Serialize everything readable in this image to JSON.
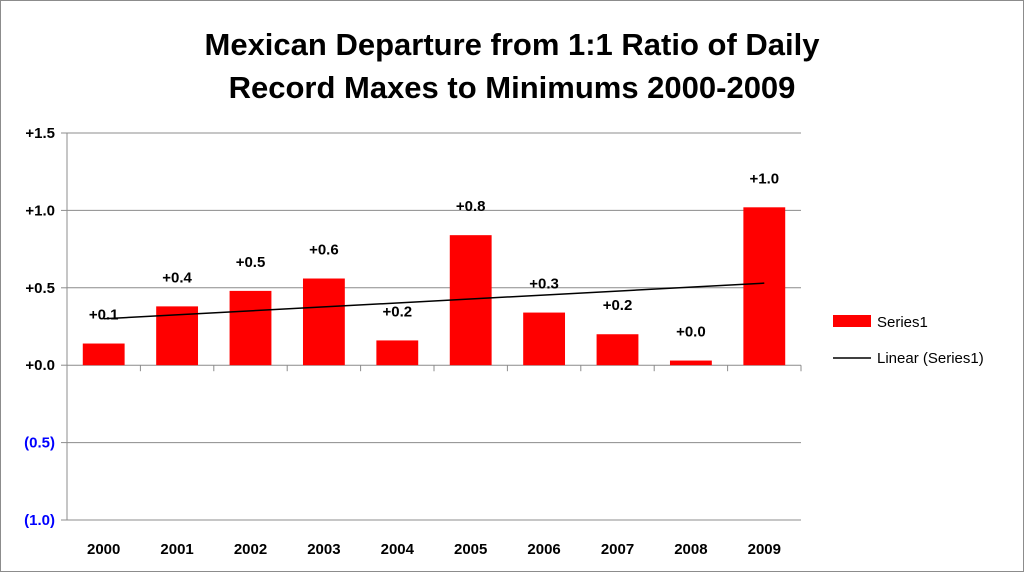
{
  "chart_data": {
    "type": "bar",
    "title_lines": [
      "Mexican Departure from 1:1 Ratio of Daily",
      "Record Maxes to  Minimums 2000-2009"
    ],
    "categories": [
      "2000",
      "2001",
      "2002",
      "2003",
      "2004",
      "2005",
      "2006",
      "2007",
      "2008",
      "2009"
    ],
    "series": [
      {
        "name": "Series1",
        "values": [
          0.14,
          0.38,
          0.48,
          0.56,
          0.16,
          0.84,
          0.34,
          0.2,
          0.03,
          1.02
        ],
        "data_labels": [
          "+0.1",
          "+0.4",
          "+0.5",
          "+0.6",
          "+0.2",
          "+0.8",
          "+0.3",
          "+0.2",
          "+0.0",
          "+1.0"
        ],
        "color": "#ff0000"
      }
    ],
    "trendline": {
      "name": "Linear (Series1)",
      "type": "linear",
      "start": 0.3,
      "end": 0.53,
      "color": "#000000"
    },
    "yticks": [
      {
        "value": 1.5,
        "label": "+1.5",
        "color": "#000000"
      },
      {
        "value": 1.0,
        "label": "+1.0",
        "color": "#000000"
      },
      {
        "value": 0.5,
        "label": "+0.5",
        "color": "#000000"
      },
      {
        "value": 0.0,
        "label": "+0.0",
        "color": "#000000"
      },
      {
        "value": -0.5,
        "label": "(0.5)",
        "color": "#0000ff"
      },
      {
        "value": -1.0,
        "label": "(1.0)",
        "color": "#0000ff"
      }
    ],
    "ylim": [
      -1.0,
      1.5
    ],
    "grid": true,
    "legend_position": "right",
    "xlabel": "",
    "ylabel": ""
  }
}
